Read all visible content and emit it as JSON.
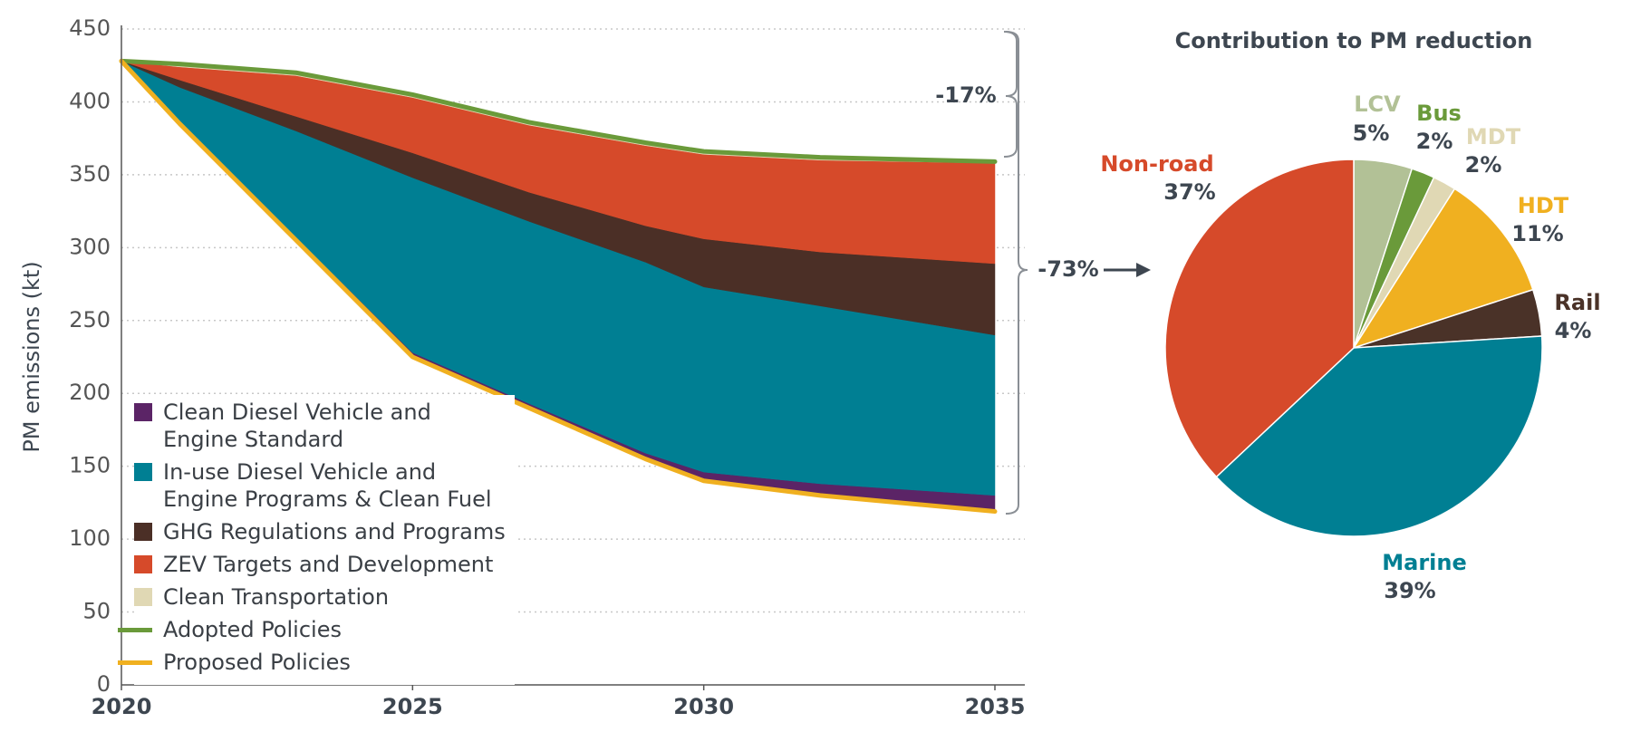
{
  "chart_data": [
    {
      "type": "area",
      "y_label": "PM emissions (kt)",
      "x": [
        2020,
        2021,
        2023,
        2025,
        2027,
        2029,
        2030,
        2032,
        2035
      ],
      "xlim": [
        2020,
        2035
      ],
      "xticks": [
        2020,
        2025,
        2030,
        2035
      ],
      "ylim": [
        0,
        450
      ],
      "yticks": [
        0,
        50,
        100,
        150,
        200,
        250,
        300,
        350,
        400,
        450
      ],
      "grid": true,
      "series": [
        {
          "name": "Clean Diesel Vehicle and\nEngine Standard",
          "type": "area",
          "color": "#5b2466",
          "values": [
            0,
            1,
            2,
            3,
            3,
            4,
            6,
            8,
            11
          ]
        },
        {
          "name": "In-use Diesel Vehicle and\nEngine Programs & Clean Fuel",
          "type": "area",
          "color": "#007f93",
          "values": [
            0,
            24,
            73,
            120,
            125,
            131,
            127,
            122,
            110
          ]
        },
        {
          "name": "GHG Regulations and Programs",
          "type": "area",
          "color": "#4b2f26",
          "values": [
            0,
            5,
            10,
            17,
            20,
            25,
            33,
            37,
            49
          ]
        },
        {
          "name": "ZEV Targets and Development",
          "type": "area",
          "color": "#d64a2a",
          "values": [
            0,
            9,
            28,
            38,
            46,
            55,
            58,
            63,
            69
          ]
        },
        {
          "name": "Clean Transportation",
          "type": "area",
          "color": "#e0d8b4",
          "values": [
            0,
            1,
            1,
            1,
            1,
            1,
            1,
            1,
            1
          ]
        },
        {
          "name": "Adopted Policies",
          "type": "line",
          "color": "#6a9a3a",
          "values": [
            428,
            426,
            420,
            405,
            386,
            372,
            366,
            362,
            359
          ]
        },
        {
          "name": "Proposed Policies",
          "type": "line",
          "color": "#f0b020",
          "values": [
            428,
            385,
            305,
            225,
            190,
            155,
            140,
            130,
            119
          ]
        }
      ],
      "annotations": [
        {
          "text": "-17%"
        },
        {
          "text": "-73%"
        }
      ]
    },
    {
      "type": "pie",
      "title": "Contribution to PM reduction",
      "categories": [
        "LCV",
        "Bus",
        "MDT",
        "HDT",
        "Rail",
        "Marine",
        "Non-road"
      ],
      "values": [
        5,
        2,
        2,
        11,
        4,
        39,
        37
      ],
      "value_labels": [
        "5%",
        "2%",
        "2%",
        "11%",
        "4%",
        "39%",
        "37%"
      ],
      "colors": [
        "#b2c196",
        "#6a9a3a",
        "#e0d8b4",
        "#f0b020",
        "#4a3228",
        "#007f93",
        "#d64a2a"
      ]
    }
  ]
}
